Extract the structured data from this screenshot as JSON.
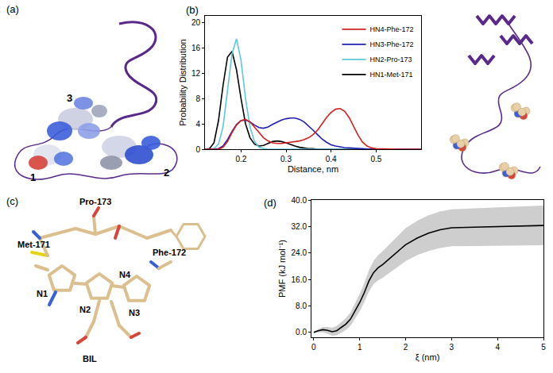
{
  "chart_data": [
    {
      "panel_label": "(b)",
      "type": "line",
      "x_label": "Distance, nm",
      "y_label": "Probability Distribution",
      "x": [
        0.12,
        0.13,
        0.14,
        0.15,
        0.16,
        0.17,
        0.18,
        0.19,
        0.2,
        0.21,
        0.22,
        0.23,
        0.24,
        0.25,
        0.26,
        0.27,
        0.28,
        0.29,
        0.3,
        0.31,
        0.32,
        0.33,
        0.34,
        0.35,
        0.36,
        0.37,
        0.38,
        0.39,
        0.4,
        0.41,
        0.42,
        0.43,
        0.44,
        0.45,
        0.46,
        0.47,
        0.48,
        0.49,
        0.5,
        0.55,
        0.6
      ],
      "series": [
        {
          "name": "HN1-Met-171",
          "color": "#000000",
          "values": [
            0,
            0.1,
            1.0,
            4.5,
            10,
            14.5,
            15.4,
            12.5,
            8,
            4,
            1.8,
            0.8,
            0.5,
            0.6,
            0.9,
            1.2,
            1.3,
            1.2,
            1.0,
            0.7,
            0.5,
            0.3,
            0.2,
            0.1,
            0.1,
            0,
            0,
            0,
            0,
            0,
            0,
            0,
            0,
            0,
            0,
            0,
            0,
            0,
            0,
            0,
            0
          ]
        },
        {
          "name": "HN2-Pro-173",
          "color": "#5bc8dc",
          "values": [
            0,
            0,
            0.1,
            0.8,
            3.5,
            9,
            15,
            17.4,
            14,
            8,
            3.5,
            1.2,
            0.3,
            0.1,
            0,
            0,
            0,
            0,
            0,
            0,
            0,
            0,
            0,
            0,
            0,
            0,
            0,
            0,
            0,
            0,
            0,
            0,
            0,
            0,
            0,
            0,
            0,
            0,
            0,
            0,
            0
          ]
        },
        {
          "name": "HN3-Phe-172",
          "color": "#1f1fb4",
          "values": [
            0,
            0,
            0,
            0.1,
            0.5,
            1.5,
            2.8,
            3.9,
            4.5,
            4.6,
            4.3,
            3.8,
            3.4,
            3.3,
            3.5,
            3.9,
            4.3,
            4.6,
            4.8,
            4.9,
            4.9,
            4.7,
            4.3,
            3.7,
            3.0,
            2.3,
            1.6,
            1.1,
            0.7,
            0.5,
            0.35,
            0.25,
            0.2,
            0.15,
            0.1,
            0.1,
            0.05,
            0,
            0,
            0,
            0
          ]
        },
        {
          "name": "HN4-Phe-172",
          "color": "#d42020",
          "values": [
            0,
            0,
            0,
            0,
            0.3,
            1.2,
            2.6,
            3.8,
            4.5,
            4.7,
            4.3,
            3.5,
            2.6,
            1.8,
            1.3,
            1.0,
            0.9,
            0.9,
            1.0,
            1.1,
            1.2,
            1.3,
            1.5,
            1.8,
            2.3,
            3.0,
            4.0,
            5.0,
            5.8,
            6.3,
            6.4,
            6.0,
            5.0,
            3.6,
            2.2,
            1.1,
            0.5,
            0.2,
            0.1,
            0,
            0
          ]
        }
      ],
      "xlim": [
        0.12,
        0.6
      ],
      "ylim": [
        0,
        21
      ],
      "xticks": [
        0.2,
        0.3,
        0.4,
        0.5
      ],
      "yticks": [
        0,
        4,
        8,
        12,
        16,
        20
      ],
      "legend": "upper right"
    },
    {
      "panel_label": "(d)",
      "type": "line",
      "x_label": "ξ (nm)",
      "y_label": "PMF (kJ mol⁻¹)",
      "x": [
        0,
        0.1,
        0.2,
        0.3,
        0.4,
        0.5,
        0.6,
        0.7,
        0.8,
        0.9,
        1.0,
        1.1,
        1.2,
        1.3,
        1.4,
        1.5,
        1.75,
        2.0,
        2.25,
        2.5,
        2.75,
        3.0,
        3.5,
        4.0,
        4.5,
        5.0
      ],
      "series": [
        {
          "color": "#000000",
          "values": [
            0,
            0.5,
            0.8,
            0.6,
            0.2,
            0.5,
            1.5,
            2.5,
            4,
            6.5,
            9,
            12,
            15.5,
            18,
            19.5,
            20.5,
            23.5,
            26.5,
            28.5,
            30,
            31,
            31.6,
            31.8,
            32,
            32.2,
            32.3
          ],
          "error": [
            0.3,
            0.5,
            0.8,
            1.0,
            1.2,
            1.4,
            1.6,
            1.8,
            2.0,
            2.3,
            2.6,
            2.9,
            3.2,
            3.5,
            3.8,
            4.0,
            4.5,
            5,
            5.2,
            5.4,
            5.5,
            5.6,
            5.7,
            5.8,
            5.9,
            6.0
          ]
        }
      ],
      "xlim": [
        -0.05,
        5
      ],
      "ylim": [
        -1.5,
        40
      ],
      "xticks": [
        0,
        1,
        2,
        3,
        4,
        5
      ],
      "yticks": [
        {
          "value": 0,
          "label": "0.0"
        },
        {
          "value": 8,
          "label": "8.0"
        },
        {
          "value": 16,
          "label": "16.0"
        },
        {
          "value": 24,
          "label": "24.0"
        },
        {
          "value": 32,
          "label": "32.0"
        },
        {
          "value": 40,
          "label": "40.0"
        }
      ]
    }
  ],
  "diagrams": {
    "a": {
      "panel_label": "(a)",
      "labels": [
        "1",
        "2",
        "3"
      ]
    },
    "c": {
      "panel_label": "(c)",
      "labels": [
        "Pro-173",
        "Met-171",
        "Phe-172",
        "N1",
        "N2",
        "N4",
        "N3",
        "BIL"
      ]
    }
  }
}
